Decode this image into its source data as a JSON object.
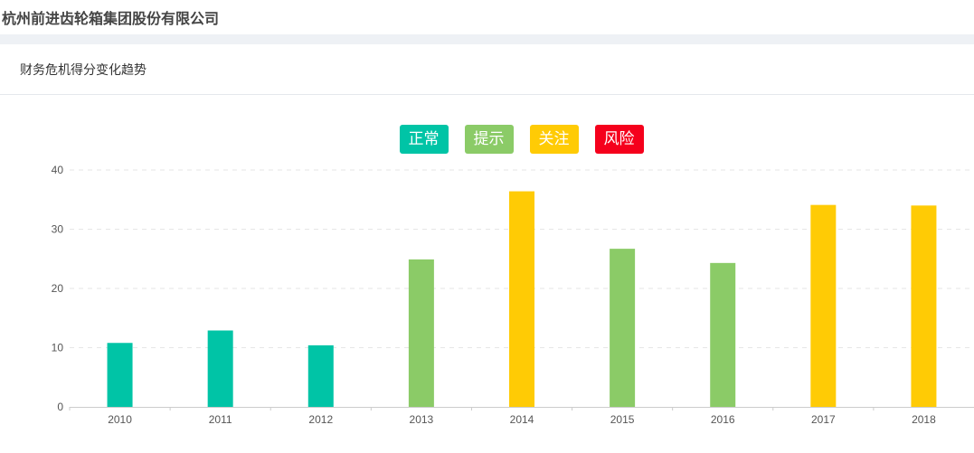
{
  "header": {
    "company_name": "杭州前进齿轮箱集团股份有限公司"
  },
  "panel": {
    "title": "财务危机得分变化趋势"
  },
  "legend": [
    {
      "label": "正常",
      "color": "#00c4a6"
    },
    {
      "label": "提示",
      "color": "#8bcb67"
    },
    {
      "label": "关注",
      "color": "#ffcb05"
    },
    {
      "label": "风险",
      "color": "#f5001c"
    }
  ],
  "chart_data": {
    "type": "bar",
    "categories": [
      "2010",
      "2011",
      "2012",
      "2013",
      "2014",
      "2015",
      "2016",
      "2017",
      "2018"
    ],
    "values": [
      10.8,
      12.9,
      10.4,
      24.9,
      36.4,
      26.7,
      24.3,
      34.1,
      34.0
    ],
    "bar_levels": [
      "正常",
      "正常",
      "正常",
      "提示",
      "关注",
      "提示",
      "提示",
      "关注",
      "关注"
    ],
    "ylim": [
      0,
      40
    ],
    "yticks": [
      0,
      10,
      20,
      30,
      40
    ],
    "grid": true,
    "legend_position": "top-center"
  }
}
